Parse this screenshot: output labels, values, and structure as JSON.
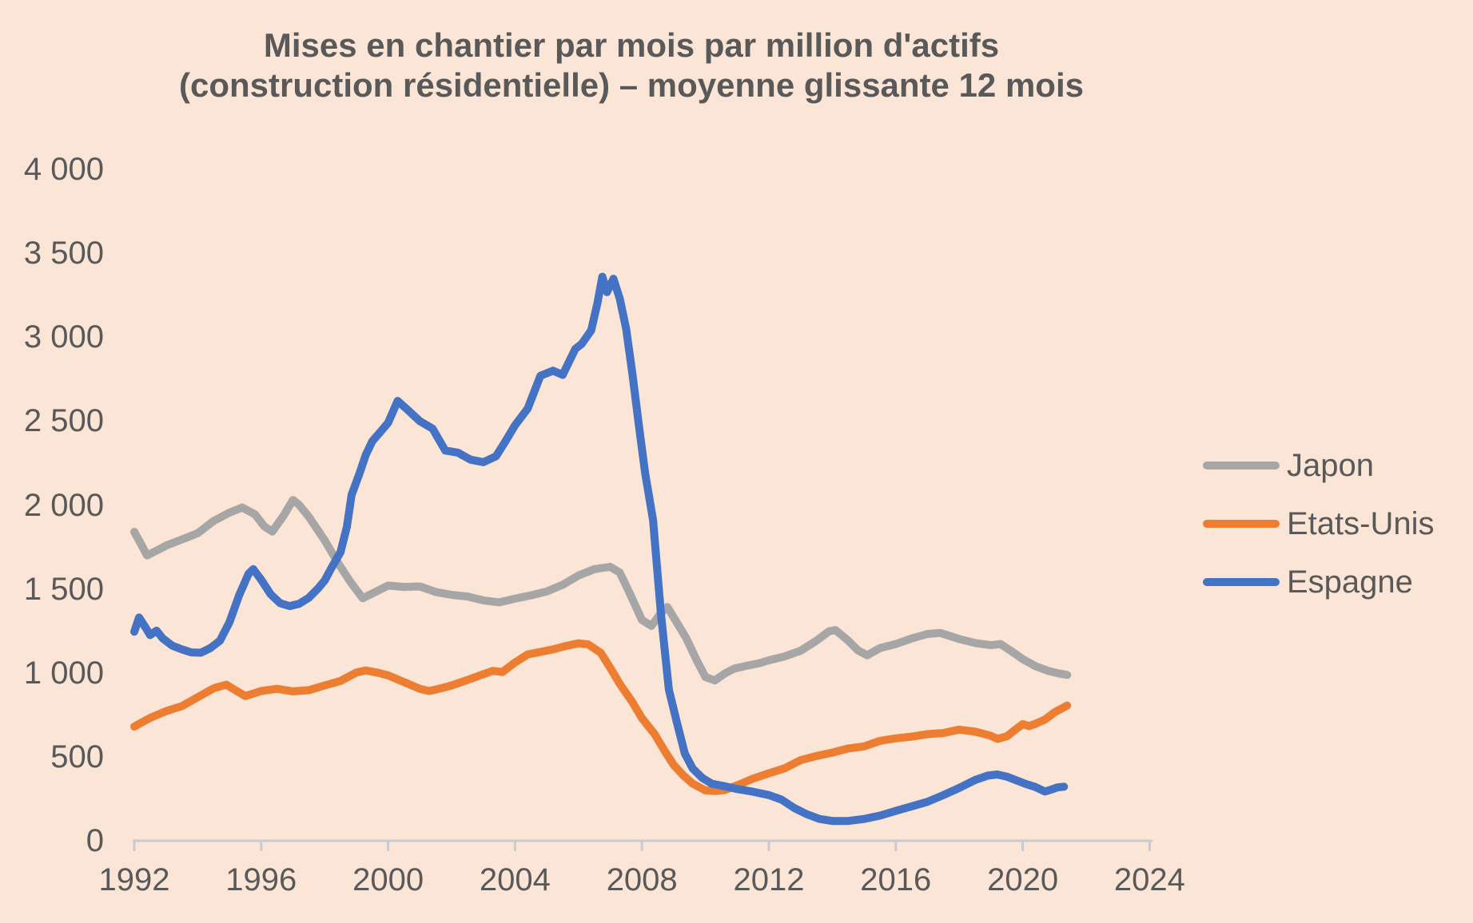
{
  "page": {
    "background": "#fbe5d6"
  },
  "chart_data": {
    "type": "line",
    "title_line1": "Mises en chantier par mois par million d'actifs",
    "title_line2": "(construction résidentielle) – moyenne glissante 12 mois",
    "title_color": "#595959",
    "label_color": "#595959",
    "axis_color": "#c8ccd0",
    "grid": false,
    "legend_position": "right-middle",
    "x_axis": {
      "min": 1992,
      "max": 2024,
      "ticks": [
        1992,
        1996,
        2000,
        2004,
        2008,
        2012,
        2016,
        2020,
        2024
      ]
    },
    "y_axis": {
      "min": 0,
      "max": 4000,
      "ticks": [
        {
          "value": 0,
          "label": "0"
        },
        {
          "value": 500,
          "label": "500"
        },
        {
          "value": 1000,
          "label": "1 000"
        },
        {
          "value": 1500,
          "label": "1 500"
        },
        {
          "value": 2000,
          "label": "2 000"
        },
        {
          "value": 2500,
          "label": "2 500"
        },
        {
          "value": 3000,
          "label": "3 000"
        },
        {
          "value": 3500,
          "label": "3 500"
        },
        {
          "value": 4000,
          "label": "4 000"
        }
      ]
    },
    "series": [
      {
        "key": "japon",
        "name": "Japon",
        "color": "#a6a6a6",
        "data": [
          [
            1992.0,
            1840
          ],
          [
            1992.2,
            1772
          ],
          [
            1992.4,
            1700
          ],
          [
            1992.7,
            1728
          ],
          [
            1993.0,
            1758
          ],
          [
            1993.5,
            1795
          ],
          [
            1994.0,
            1832
          ],
          [
            1994.5,
            1905
          ],
          [
            1995.0,
            1955
          ],
          [
            1995.4,
            1985
          ],
          [
            1995.8,
            1945
          ],
          [
            1996.1,
            1872
          ],
          [
            1996.35,
            1842
          ],
          [
            1996.7,
            1935
          ],
          [
            1997.0,
            2030
          ],
          [
            1997.2,
            2000
          ],
          [
            1997.5,
            1930
          ],
          [
            1998.0,
            1790
          ],
          [
            1998.4,
            1662
          ],
          [
            1998.8,
            1545
          ],
          [
            1999.2,
            1445
          ],
          [
            1999.6,
            1482
          ],
          [
            2000.0,
            1520
          ],
          [
            2000.5,
            1512
          ],
          [
            2001.0,
            1515
          ],
          [
            2001.5,
            1482
          ],
          [
            2002.0,
            1465
          ],
          [
            2002.5,
            1455
          ],
          [
            2003.0,
            1432
          ],
          [
            2003.5,
            1420
          ],
          [
            2004.0,
            1442
          ],
          [
            2004.5,
            1462
          ],
          [
            2005.0,
            1485
          ],
          [
            2005.5,
            1525
          ],
          [
            2006.0,
            1580
          ],
          [
            2006.5,
            1618
          ],
          [
            2007.0,
            1632
          ],
          [
            2007.3,
            1598
          ],
          [
            2007.6,
            1480
          ],
          [
            2008.0,
            1315
          ],
          [
            2008.3,
            1280
          ],
          [
            2008.6,
            1358
          ],
          [
            2008.8,
            1392
          ],
          [
            2009.1,
            1300
          ],
          [
            2009.4,
            1205
          ],
          [
            2009.7,
            1085
          ],
          [
            2010.0,
            975
          ],
          [
            2010.3,
            955
          ],
          [
            2010.6,
            995
          ],
          [
            2010.9,
            1025
          ],
          [
            2011.3,
            1042
          ],
          [
            2011.7,
            1058
          ],
          [
            2012.0,
            1075
          ],
          [
            2012.5,
            1098
          ],
          [
            2013.0,
            1132
          ],
          [
            2013.5,
            1192
          ],
          [
            2013.9,
            1248
          ],
          [
            2014.1,
            1255
          ],
          [
            2014.5,
            1192
          ],
          [
            2014.8,
            1135
          ],
          [
            2015.1,
            1105
          ],
          [
            2015.5,
            1148
          ],
          [
            2016.0,
            1172
          ],
          [
            2016.5,
            1205
          ],
          [
            2017.0,
            1232
          ],
          [
            2017.4,
            1238
          ],
          [
            2018.0,
            1202
          ],
          [
            2018.5,
            1178
          ],
          [
            2019.0,
            1165
          ],
          [
            2019.3,
            1172
          ],
          [
            2019.7,
            1122
          ],
          [
            2020.0,
            1082
          ],
          [
            2020.4,
            1040
          ],
          [
            2020.8,
            1012
          ],
          [
            2021.1,
            998
          ],
          [
            2021.4,
            988
          ]
        ]
      },
      {
        "key": "etats-unis",
        "name": "Etats-Unis",
        "color": "#ed7d31",
        "data": [
          [
            1992.0,
            680
          ],
          [
            1992.5,
            732
          ],
          [
            1993.0,
            772
          ],
          [
            1993.5,
            802
          ],
          [
            1994.0,
            855
          ],
          [
            1994.5,
            908
          ],
          [
            1994.9,
            930
          ],
          [
            1995.2,
            895
          ],
          [
            1995.5,
            862
          ],
          [
            1996.0,
            892
          ],
          [
            1996.5,
            905
          ],
          [
            1997.0,
            890
          ],
          [
            1997.5,
            897
          ],
          [
            1998.0,
            925
          ],
          [
            1998.5,
            952
          ],
          [
            1999.0,
            1002
          ],
          [
            1999.3,
            1015
          ],
          [
            1999.7,
            1000
          ],
          [
            2000.0,
            985
          ],
          [
            2000.5,
            945
          ],
          [
            2001.0,
            905
          ],
          [
            2001.3,
            892
          ],
          [
            2001.7,
            910
          ],
          [
            2002.0,
            925
          ],
          [
            2002.5,
            958
          ],
          [
            2003.0,
            992
          ],
          [
            2003.3,
            1012
          ],
          [
            2003.6,
            1005
          ],
          [
            2004.0,
            1062
          ],
          [
            2004.4,
            1110
          ],
          [
            2004.8,
            1125
          ],
          [
            2005.2,
            1140
          ],
          [
            2005.6,
            1160
          ],
          [
            2006.0,
            1176
          ],
          [
            2006.3,
            1170
          ],
          [
            2006.7,
            1120
          ],
          [
            2007.0,
            1030
          ],
          [
            2007.3,
            935
          ],
          [
            2007.7,
            825
          ],
          [
            2008.0,
            730
          ],
          [
            2008.4,
            635
          ],
          [
            2008.7,
            540
          ],
          [
            2009.0,
            452
          ],
          [
            2009.3,
            390
          ],
          [
            2009.6,
            340
          ],
          [
            2010.0,
            300
          ],
          [
            2010.3,
            296
          ],
          [
            2010.6,
            302
          ],
          [
            2011.0,
            330
          ],
          [
            2011.5,
            370
          ],
          [
            2012.0,
            402
          ],
          [
            2012.5,
            432
          ],
          [
            2013.0,
            480
          ],
          [
            2013.5,
            505
          ],
          [
            2014.0,
            525
          ],
          [
            2014.5,
            550
          ],
          [
            2015.0,
            562
          ],
          [
            2015.5,
            595
          ],
          [
            2016.0,
            610
          ],
          [
            2016.5,
            620
          ],
          [
            2017.0,
            635
          ],
          [
            2017.5,
            642
          ],
          [
            2018.0,
            662
          ],
          [
            2018.5,
            650
          ],
          [
            2019.0,
            625
          ],
          [
            2019.2,
            607
          ],
          [
            2019.5,
            622
          ],
          [
            2019.8,
            667
          ],
          [
            2020.0,
            695
          ],
          [
            2020.2,
            683
          ],
          [
            2020.4,
            697
          ],
          [
            2020.7,
            722
          ],
          [
            2021.0,
            765
          ],
          [
            2021.4,
            805
          ]
        ]
      },
      {
        "key": "espagne",
        "name": "Espagne",
        "color": "#4472c4",
        "data": [
          [
            1992.0,
            1245
          ],
          [
            1992.15,
            1330
          ],
          [
            1992.35,
            1272
          ],
          [
            1992.5,
            1225
          ],
          [
            1992.7,
            1252
          ],
          [
            1992.9,
            1205
          ],
          [
            1993.2,
            1162
          ],
          [
            1993.5,
            1140
          ],
          [
            1993.8,
            1122
          ],
          [
            1994.1,
            1120
          ],
          [
            1994.4,
            1148
          ],
          [
            1994.7,
            1192
          ],
          [
            1995.0,
            1302
          ],
          [
            1995.3,
            1460
          ],
          [
            1995.6,
            1590
          ],
          [
            1995.75,
            1618
          ],
          [
            1996.0,
            1555
          ],
          [
            1996.3,
            1468
          ],
          [
            1996.6,
            1415
          ],
          [
            1996.9,
            1398
          ],
          [
            1997.2,
            1412
          ],
          [
            1997.5,
            1448
          ],
          [
            1997.8,
            1505
          ],
          [
            1998.0,
            1550
          ],
          [
            1998.2,
            1620
          ],
          [
            1998.5,
            1720
          ],
          [
            1998.7,
            1870
          ],
          [
            1998.85,
            2060
          ],
          [
            1999.1,
            2190
          ],
          [
            1999.3,
            2300
          ],
          [
            1999.5,
            2380
          ],
          [
            1999.8,
            2445
          ],
          [
            2000.0,
            2490
          ],
          [
            2000.3,
            2620
          ],
          [
            2000.6,
            2570
          ],
          [
            2001.0,
            2500
          ],
          [
            2001.4,
            2455
          ],
          [
            2001.8,
            2325
          ],
          [
            2002.2,
            2312
          ],
          [
            2002.6,
            2270
          ],
          [
            2003.0,
            2255
          ],
          [
            2003.4,
            2290
          ],
          [
            2003.7,
            2380
          ],
          [
            2004.0,
            2475
          ],
          [
            2004.4,
            2575
          ],
          [
            2004.8,
            2770
          ],
          [
            2005.2,
            2800
          ],
          [
            2005.5,
            2775
          ],
          [
            2005.9,
            2930
          ],
          [
            2006.1,
            2960
          ],
          [
            2006.4,
            3040
          ],
          [
            2006.6,
            3205
          ],
          [
            2006.75,
            3360
          ],
          [
            2006.9,
            3268
          ],
          [
            2007.1,
            3348
          ],
          [
            2007.3,
            3230
          ],
          [
            2007.5,
            3050
          ],
          [
            2007.7,
            2780
          ],
          [
            2007.9,
            2480
          ],
          [
            2008.1,
            2190
          ],
          [
            2008.35,
            1910
          ],
          [
            2008.6,
            1350
          ],
          [
            2008.85,
            900
          ],
          [
            2009.1,
            705
          ],
          [
            2009.35,
            520
          ],
          [
            2009.6,
            430
          ],
          [
            2009.9,
            375
          ],
          [
            2010.2,
            340
          ],
          [
            2010.6,
            325
          ],
          [
            2011.0,
            308
          ],
          [
            2011.5,
            292
          ],
          [
            2012.0,
            272
          ],
          [
            2012.4,
            245
          ],
          [
            2012.8,
            195
          ],
          [
            2013.2,
            158
          ],
          [
            2013.6,
            130
          ],
          [
            2014.0,
            118
          ],
          [
            2014.5,
            118
          ],
          [
            2015.0,
            130
          ],
          [
            2015.5,
            150
          ],
          [
            2016.0,
            178
          ],
          [
            2016.5,
            205
          ],
          [
            2017.0,
            232
          ],
          [
            2017.5,
            272
          ],
          [
            2018.0,
            315
          ],
          [
            2018.5,
            362
          ],
          [
            2018.9,
            388
          ],
          [
            2019.2,
            395
          ],
          [
            2019.5,
            382
          ],
          [
            2019.8,
            360
          ],
          [
            2020.1,
            338
          ],
          [
            2020.4,
            320
          ],
          [
            2020.7,
            293
          ],
          [
            2020.9,
            305
          ],
          [
            2021.1,
            318
          ],
          [
            2021.3,
            322
          ]
        ]
      }
    ]
  }
}
